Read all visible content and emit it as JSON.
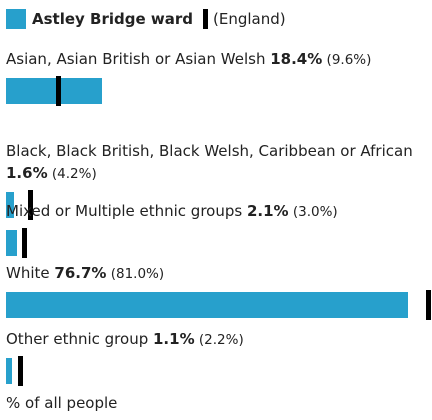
{
  "chart_data": {
    "type": "bar",
    "orientation": "horizontal",
    "legend": {
      "area_label": "Astley Bridge ward",
      "comparison_label": "(England)",
      "placement": "top-left"
    },
    "categories": [
      "Asian, Asian British or Asian Welsh",
      "Black, Black British, Black Welsh, Caribbean or African",
      "Mixed or Multiple ethnic groups",
      "White",
      "Other ethnic group"
    ],
    "series": [
      {
        "name": "Astley Bridge ward",
        "values": [
          18.4,
          1.6,
          2.1,
          76.7,
          1.1
        ],
        "labels": [
          "18.4%",
          "1.6%",
          "2.1%",
          "76.7%",
          "1.1%"
        ]
      },
      {
        "name": "England",
        "values": [
          9.6,
          4.2,
          3.0,
          81.0,
          2.2
        ],
        "labels": [
          "(9.6%)",
          "(4.2%)",
          "(3.0%)",
          "(81.0%)",
          "(2.2%)"
        ]
      }
    ],
    "xlabel": "% of all people",
    "xlim": [
      0,
      80
    ],
    "grid": false,
    "colors": {
      "bar": "#27a0cc",
      "comparison_marker": "#000000"
    }
  }
}
